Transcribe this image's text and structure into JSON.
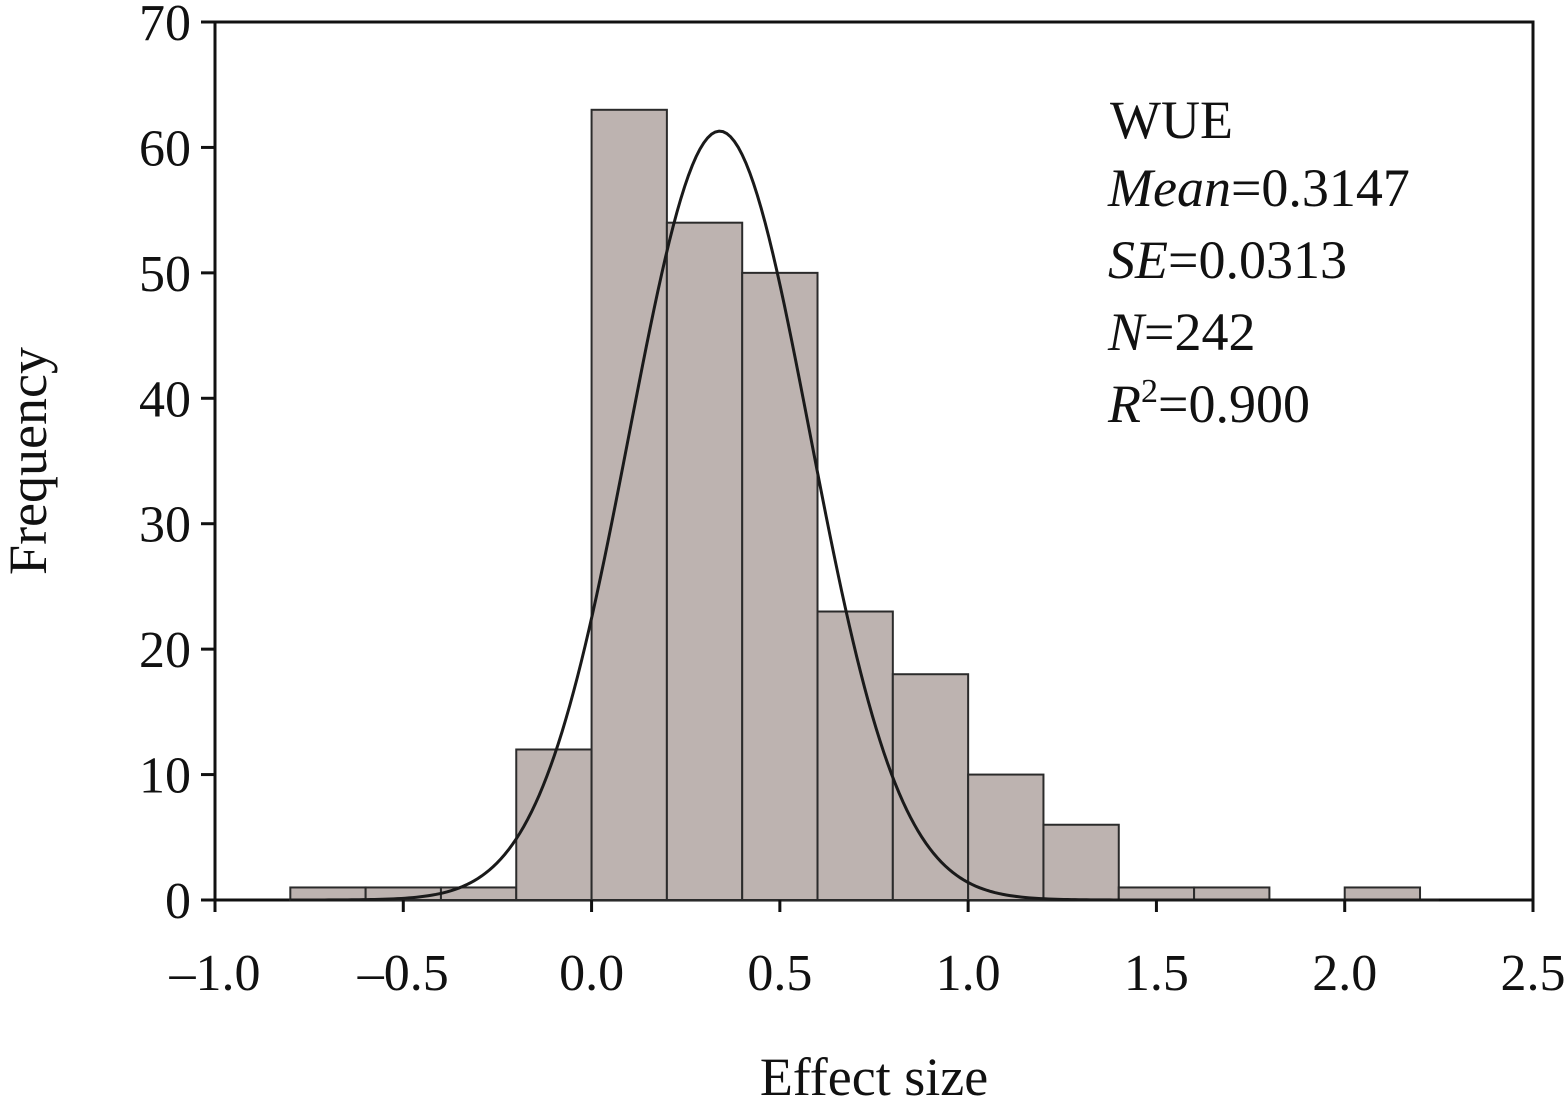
{
  "chart_data": {
    "type": "bar",
    "title": "",
    "xlabel": "Effect size",
    "ylabel": "Frequency",
    "xlim": [
      -1.0,
      2.5
    ],
    "ylim": [
      0,
      70
    ],
    "x_ticks": [
      "–1.0",
      "–0.5",
      "0.0",
      "0.5",
      "1.0",
      "1.5",
      "2.0",
      "2.5"
    ],
    "x_tick_values": [
      -1.0,
      -0.5,
      0.0,
      0.5,
      1.0,
      1.5,
      2.0,
      2.5
    ],
    "y_ticks": [
      "0",
      "10",
      "20",
      "30",
      "40",
      "50",
      "60",
      "70"
    ],
    "y_tick_values": [
      0,
      10,
      20,
      30,
      40,
      50,
      60,
      70
    ],
    "bin_width": 0.2,
    "bins": [
      {
        "start": -0.8,
        "end": -0.6,
        "value": 1
      },
      {
        "start": -0.6,
        "end": -0.4,
        "value": 1
      },
      {
        "start": -0.4,
        "end": -0.2,
        "value": 1
      },
      {
        "start": -0.2,
        "end": 0.0,
        "value": 12
      },
      {
        "start": 0.0,
        "end": 0.2,
        "value": 63
      },
      {
        "start": 0.2,
        "end": 0.4,
        "value": 54
      },
      {
        "start": 0.4,
        "end": 0.6,
        "value": 50
      },
      {
        "start": 0.6,
        "end": 0.8,
        "value": 23
      },
      {
        "start": 0.8,
        "end": 1.0,
        "value": 18
      },
      {
        "start": 1.0,
        "end": 1.2,
        "value": 10
      },
      {
        "start": 1.2,
        "end": 1.4,
        "value": 6
      },
      {
        "start": 1.4,
        "end": 1.6,
        "value": 1
      },
      {
        "start": 1.6,
        "end": 1.8,
        "value": 1
      },
      {
        "start": 1.8,
        "end": 2.0,
        "value": 0
      },
      {
        "start": 2.0,
        "end": 2.2,
        "value": 1
      }
    ],
    "fit_curve": {
      "peak_x": 0.34,
      "peak_y": 61.3,
      "sd": 0.24,
      "x_range": [
        -0.8,
        2.25
      ]
    },
    "grid": false,
    "colors": {
      "bar_fill": "#bdb3b0",
      "bar_stroke": "#2b2b2b",
      "curve": "#1a1a1a",
      "axis": "#111111"
    },
    "annotation": {
      "label": "WUE",
      "mean_label": "Mean",
      "mean_value": "=0.3147",
      "se_label": "SE",
      "se_value": "=0.0313",
      "n_label": "N",
      "n_value": "=242",
      "r2_label": "R",
      "r2_sup": "2",
      "r2_value": "=0.900"
    }
  }
}
